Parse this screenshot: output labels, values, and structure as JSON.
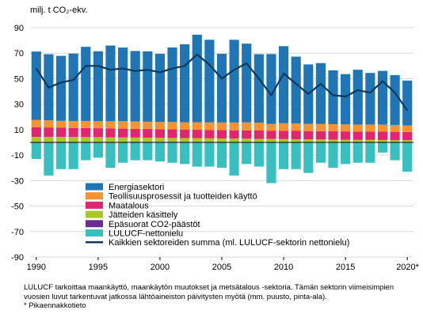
{
  "chart_data": {
    "type": "bar",
    "stacked": true,
    "unit_label": "milj. t CO₂-ekv.",
    "ylim": [
      -90,
      90
    ],
    "yticks": [
      "90",
      "70",
      "50",
      "30",
      "10",
      "-10",
      "-30",
      "-50",
      "-70",
      "-90"
    ],
    "ytick_values": [
      90,
      70,
      50,
      30,
      10,
      -10,
      -30,
      -50,
      -70,
      -90
    ],
    "categories": [
      "1990",
      "1991",
      "1992",
      "1993",
      "1994",
      "1995",
      "1996",
      "1997",
      "1998",
      "1999",
      "2000",
      "2001",
      "2002",
      "2003",
      "2004",
      "2005",
      "2006",
      "2007",
      "2008",
      "2009",
      "2010",
      "2011",
      "2012",
      "2013",
      "2014",
      "2015",
      "2016",
      "2017",
      "2018",
      "2019",
      "2020*"
    ],
    "xtick_labels": [
      "1990",
      "1995",
      "2000",
      "2005",
      "2010",
      "2015",
      "2020*"
    ],
    "xtick_indices": [
      0,
      5,
      10,
      15,
      20,
      25,
      30
    ],
    "legend_position": "lower-left",
    "series": [
      {
        "name": "Jätteiden käsittely",
        "color": "#a8c62c",
        "values": [
          4.3,
          4.3,
          4.3,
          4.2,
          4.2,
          4.1,
          4.0,
          3.9,
          3.8,
          3.7,
          3.6,
          3.5,
          3.4,
          3.3,
          3.2,
          3.1,
          3.0,
          2.9,
          2.8,
          2.7,
          2.6,
          2.5,
          2.4,
          2.3,
          2.2,
          2.1,
          2.0,
          2.0,
          1.9,
          1.8,
          1.8
        ]
      },
      {
        "name": "Maatalous",
        "color": "#e2256f",
        "values": [
          7.5,
          7.4,
          7.2,
          7.1,
          7.0,
          7.0,
          6.9,
          6.9,
          6.8,
          6.8,
          6.7,
          6.7,
          6.6,
          6.6,
          6.5,
          6.5,
          6.5,
          6.5,
          6.5,
          6.5,
          6.5,
          6.5,
          6.5,
          6.5,
          6.5,
          6.5,
          6.5,
          6.5,
          6.5,
          6.5,
          6.4
        ]
      },
      {
        "name": "Teollisuusprosessit ja tuotteiden käyttö",
        "color": "#f59231",
        "values": [
          5.8,
          5.6,
          5.4,
          5.5,
          5.6,
          5.6,
          5.7,
          5.8,
          5.8,
          5.7,
          5.8,
          5.8,
          5.8,
          5.9,
          6.0,
          6.0,
          6.1,
          6.3,
          6.2,
          5.3,
          5.9,
          5.8,
          5.6,
          5.6,
          5.6,
          5.5,
          5.5,
          5.5,
          5.6,
          5.4,
          5.1
        ]
      },
      {
        "name": "Energiasektori",
        "color": "#2076b5",
        "values": [
          53.7,
          51.9,
          51.0,
          52.9,
          58.2,
          54.8,
          59.4,
          57.8,
          55.3,
          55.2,
          53.4,
          58.5,
          61.2,
          68.7,
          64.8,
          53.9,
          64.9,
          61.8,
          53.7,
          54.8,
          60.5,
          52.5,
          46.7,
          47.8,
          42.2,
          39.5,
          43.0,
          40.5,
          42.1,
          39.1,
          35.2
        ]
      },
      {
        "name": "LULUCF-nettonielu",
        "color": "#38bfbf",
        "values": [
          -13,
          -26,
          -21,
          -21,
          -14,
          -12,
          -20,
          -16,
          -14,
          -14,
          -15,
          -16,
          -17,
          -19,
          -19,
          -20,
          -26,
          -17,
          -19,
          -32,
          -21,
          -21,
          -24,
          -16,
          -20,
          -17,
          -16,
          -16,
          -8,
          -14,
          -23
        ]
      }
    ],
    "legend": [
      {
        "name": "Energiasektori",
        "color": "#2076b5",
        "kind": "box"
      },
      {
        "name": "Teollisuusprosessit ja tuotteiden käyttö",
        "color": "#f59231",
        "kind": "box"
      },
      {
        "name": "Maatalous",
        "color": "#e2256f",
        "kind": "box"
      },
      {
        "name": "Jätteiden käsittely",
        "color": "#a8c62c",
        "kind": "box"
      },
      {
        "name": "Epäsuorat CO2-päästöt",
        "color": "#6b2c8f",
        "kind": "box"
      },
      {
        "name": "LULUCF-nettonielu",
        "color": "#38bfbf",
        "kind": "box"
      },
      {
        "name": "Kaikkien sektoreiden summa (ml. LULUCF-sektorin nettonielu)",
        "color": "#0d3a5c",
        "kind": "line"
      }
    ],
    "line_series": {
      "name": "Kaikkien sektoreiden summa (ml. LULUCF-sektorin nettonielu)",
      "color": "#0d3a5c",
      "values": [
        58,
        43,
        47,
        49,
        60,
        60,
        57,
        58,
        56,
        57,
        55,
        58,
        60,
        69,
        61,
        50,
        57,
        62,
        50,
        37,
        54,
        46,
        38,
        46,
        37,
        36,
        41,
        39,
        48,
        39,
        25
      ]
    }
  },
  "footnote": {
    "line1": "LULUCF tarkoittaa maankäyttö, maankäytön muutokset ja metsätalous -sektoria. Tämän sektorin viimeisimpien  vuosien luvut tarkentuvat jatkossa lähtöaineiston päivitysten myötä (mm.  puusto, pinta-ala).",
    "line2": "* Pikaennakkotieto"
  }
}
